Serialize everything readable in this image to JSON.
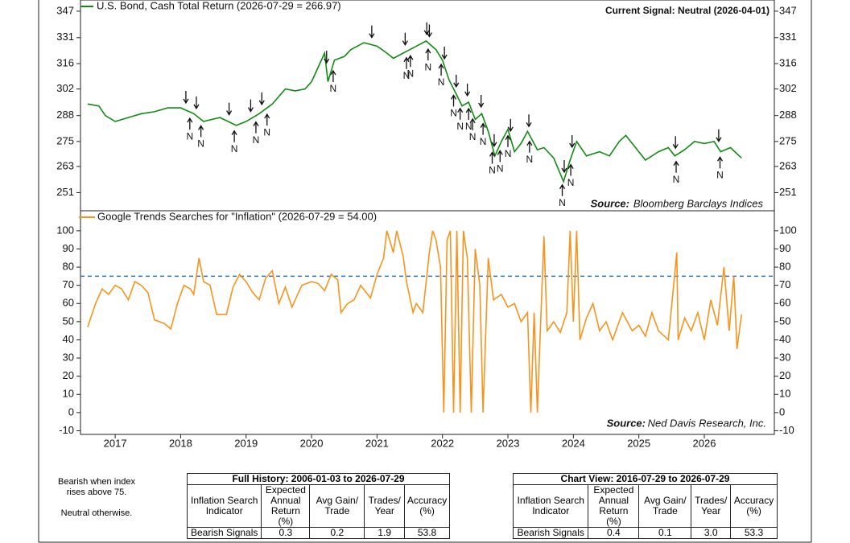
{
  "chart_data": [
    {
      "type": "line",
      "log": true,
      "xlim": [
        2016.47,
        2027.07
      ],
      "ylim": [
        243,
        354
      ],
      "yticks": [
        251,
        263,
        275,
        288,
        302,
        316,
        331,
        347
      ],
      "current_signal": "Current Signal: Neutral (2026-04-01)",
      "source_label": "Source:",
      "source": "Bloomberg Barclays Indices",
      "x": [
        2016.58,
        2016.75,
        2016.85,
        2017.0,
        2017.2,
        2017.4,
        2017.6,
        2017.8,
        2018.0,
        2018.2,
        2018.35,
        2018.6,
        2018.85,
        2019.0,
        2019.2,
        2019.4,
        2019.6,
        2019.75,
        2019.9,
        2020.0,
        2020.2,
        2020.25,
        2020.35,
        2020.5,
        2020.6,
        2020.8,
        2021.0,
        2021.15,
        2021.25,
        2021.4,
        2021.6,
        2021.75,
        2021.9,
        2022.0,
        2022.1,
        2022.2,
        2022.3,
        2022.4,
        2022.5,
        2022.6,
        2022.7,
        2022.8,
        2022.9,
        2023.0,
        2023.1,
        2023.2,
        2023.3,
        2023.45,
        2023.55,
        2023.7,
        2023.85,
        2023.95,
        2024.05,
        2024.2,
        2024.4,
        2024.55,
        2024.7,
        2024.8,
        2024.95,
        2025.1,
        2025.3,
        2025.45,
        2025.55,
        2025.7,
        2025.85,
        2026.0,
        2026.15,
        2026.25,
        2026.4,
        2026.57
      ],
      "series": [
        {
          "name": "U.S. Bond, Cash Total Return (2026-07-29 = 266.97)",
          "color": "#138a13",
          "values": [
            294,
            293,
            288,
            285,
            287,
            289,
            290,
            292,
            292,
            289,
            285,
            287,
            283,
            285,
            289,
            294,
            302,
            301,
            302,
            306,
            322,
            306,
            318,
            320,
            324,
            328,
            326,
            322,
            319,
            322,
            326,
            329,
            324,
            318,
            307,
            300,
            293,
            295,
            286,
            289,
            280,
            268,
            275,
            281,
            270,
            274,
            280,
            271,
            272,
            267,
            256,
            266,
            275,
            268,
            270,
            268,
            275,
            278,
            272,
            266,
            270,
            272,
            268,
            271,
            275,
            274,
            275,
            270,
            272,
            267
          ]
        }
      ],
      "signals": {
        "neutral_label": "N",
        "bearish": [
          2018.08,
          2018.24,
          2018.74,
          2019.07,
          2019.24,
          2020.23,
          2020.92,
          2021.43,
          2021.76,
          2021.8,
          2022.03,
          2022.21,
          2022.38,
          2022.59,
          2022.79,
          2023.04,
          2023.32,
          2023.86,
          2023.98,
          2025.56,
          2026.22
        ],
        "neutral": [
          2018.14,
          2018.31,
          2018.82,
          2019.15,
          2019.32,
          2020.33,
          2021.45,
          2021.51,
          2021.78,
          2021.98,
          2022.17,
          2022.27,
          2022.4,
          2022.46,
          2022.62,
          2022.76,
          2022.88,
          2023.0,
          2023.33,
          2023.83,
          2023.96,
          2025.57,
          2026.24
        ]
      }
    },
    {
      "type": "line",
      "xlim": [
        2016.47,
        2027.07
      ],
      "ylim": [
        -12,
        111
      ],
      "xticks": [
        2017,
        2018,
        2019,
        2020,
        2021,
        2022,
        2023,
        2024,
        2025,
        2026
      ],
      "yticks": [
        -10,
        0,
        10,
        20,
        30,
        40,
        50,
        60,
        70,
        80,
        90,
        100
      ],
      "threshold": 75,
      "threshold_color": "#2e75b6",
      "source_label": "Source:",
      "source": "Ned Davis Research, Inc.",
      "x": [
        2016.58,
        2016.7,
        2016.8,
        2016.9,
        2017.0,
        2017.1,
        2017.2,
        2017.3,
        2017.4,
        2017.5,
        2017.6,
        2017.75,
        2017.85,
        2017.95,
        2018.05,
        2018.15,
        2018.2,
        2018.28,
        2018.35,
        2018.45,
        2018.55,
        2018.7,
        2018.8,
        2018.9,
        2019.0,
        2019.1,
        2019.2,
        2019.3,
        2019.4,
        2019.5,
        2019.6,
        2019.7,
        2019.85,
        2020.0,
        2020.1,
        2020.2,
        2020.3,
        2020.4,
        2020.45,
        2020.55,
        2020.65,
        2020.75,
        2020.9,
        2021.0,
        2021.1,
        2021.15,
        2021.25,
        2021.3,
        2021.4,
        2021.45,
        2021.55,
        2021.6,
        2021.7,
        2021.8,
        2021.85,
        2021.9,
        2021.97,
        2022.02,
        2022.07,
        2022.12,
        2022.17,
        2022.22,
        2022.27,
        2022.32,
        2022.38,
        2022.44,
        2022.5,
        2022.57,
        2022.62,
        2022.7,
        2022.78,
        2022.9,
        2023.0,
        2023.1,
        2023.2,
        2023.3,
        2023.35,
        2023.4,
        2023.45,
        2023.5,
        2023.55,
        2023.6,
        2023.7,
        2023.8,
        2023.9,
        2023.95,
        2024.0,
        2024.05,
        2024.1,
        2024.2,
        2024.3,
        2024.4,
        2024.5,
        2024.6,
        2024.75,
        2024.9,
        2025.0,
        2025.1,
        2025.2,
        2025.3,
        2025.45,
        2025.5,
        2025.58,
        2025.6,
        2025.7,
        2025.8,
        2025.9,
        2026.0,
        2026.1,
        2026.2,
        2026.3,
        2026.38,
        2026.45,
        2026.5,
        2026.57
      ],
      "series": [
        {
          "name": "Google Trends Searches for \"Inflation\" (2026-07-29 = 54.00)",
          "color": "#f7941d",
          "values": [
            47,
            60,
            68,
            65,
            70,
            68,
            62,
            72,
            70,
            66,
            51,
            49,
            46,
            60,
            70,
            68,
            65,
            85,
            72,
            70,
            54,
            54,
            69,
            76,
            72,
            66,
            62,
            74,
            78,
            60,
            69,
            58,
            70,
            72,
            71,
            67,
            76,
            73,
            55,
            60,
            62,
            70,
            63,
            76,
            85,
            100,
            88,
            100,
            86,
            72,
            55,
            60,
            55,
            88,
            100,
            95,
            80,
            0,
            95,
            100,
            0,
            100,
            0,
            100,
            85,
            0,
            90,
            70,
            0,
            85,
            62,
            65,
            58,
            60,
            50,
            55,
            0,
            55,
            0,
            50,
            97,
            45,
            50,
            44,
            55,
            100,
            50,
            100,
            40,
            52,
            60,
            45,
            50,
            40,
            55,
            45,
            48,
            42,
            55,
            45,
            40,
            58,
            88,
            40,
            52,
            45,
            55,
            40,
            62,
            48,
            80,
            45,
            75,
            35,
            54
          ]
        }
      ]
    }
  ],
  "note": [
    "Bearish when index rises above 75.",
    "Neutral otherwise."
  ],
  "tables": [
    {
      "title": "Full History: 2006-01-03 to 2026-07-29",
      "columns": [
        "Inflation Search Indicator",
        "Expected Annual Return (%)",
        "Avg Gain/ Trade",
        "Trades/ Year",
        "Accuracy (%)"
      ],
      "rows": [
        [
          "Bearish Signals",
          "0.3",
          "0.2",
          "1.9",
          "53.8"
        ]
      ]
    },
    {
      "title": "Chart View: 2016-07-29 to 2026-07-29",
      "columns": [
        "Inflation Search Indicator",
        "Expected Annual Return (%)",
        "Avg Gain/ Trade",
        "Trades/ Year",
        "Accuracy (%)"
      ],
      "rows": [
        [
          "Bearish Signals",
          "0.4",
          "0.1",
          "3.0",
          "53.3"
        ]
      ]
    }
  ]
}
